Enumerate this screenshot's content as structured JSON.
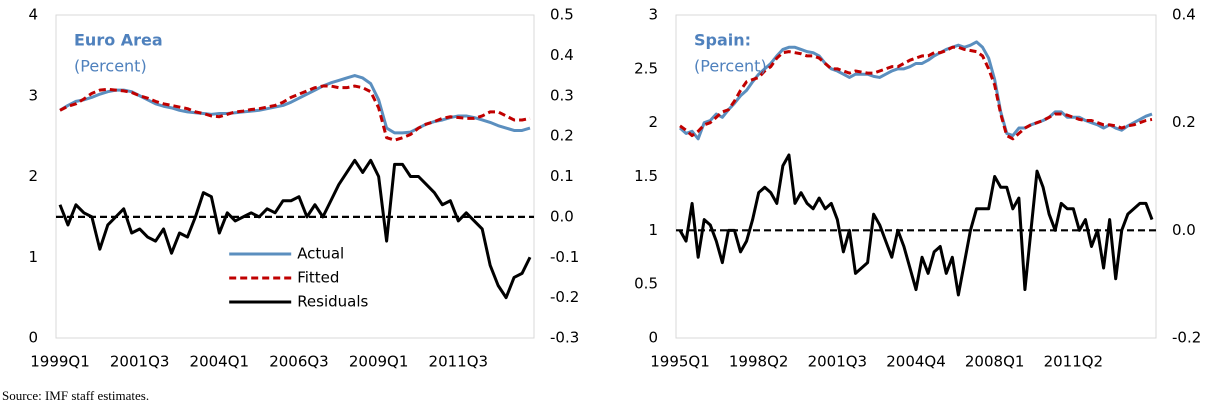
{
  "chart_data": [
    {
      "type": "line",
      "title": "Euro Area",
      "subtitle": "(Percent)",
      "categories": [
        "1999Q1",
        null,
        null,
        null,
        null,
        null,
        null,
        null,
        null,
        null,
        "2001Q3",
        null,
        null,
        null,
        null,
        null,
        null,
        null,
        null,
        null,
        "2004Q1",
        null,
        null,
        null,
        null,
        null,
        null,
        null,
        null,
        null,
        "2006Q3",
        null,
        null,
        null,
        null,
        null,
        null,
        null,
        null,
        null,
        "2009Q1",
        null,
        null,
        null,
        null,
        null,
        null,
        null,
        null,
        null,
        "2011Q3",
        null,
        null,
        null,
        null,
        null,
        null,
        null,
        null,
        null
      ],
      "series": [
        {
          "name": "Actual",
          "color": "#5b8fbf",
          "dash": false,
          "values": [
            2.82,
            2.88,
            2.93,
            2.95,
            2.98,
            3.02,
            3.05,
            3.07,
            3.07,
            3.05,
            3.0,
            2.95,
            2.9,
            2.87,
            2.85,
            2.82,
            2.8,
            2.79,
            2.78,
            2.77,
            2.78,
            2.78,
            2.79,
            2.8,
            2.81,
            2.82,
            2.84,
            2.86,
            2.88,
            2.92,
            2.97,
            3.02,
            3.07,
            3.12,
            3.16,
            3.19,
            3.22,
            3.25,
            3.22,
            3.15,
            2.95,
            2.6,
            2.54,
            2.54,
            2.55,
            2.6,
            2.65,
            2.68,
            2.7,
            2.73,
            2.75,
            2.75,
            2.73,
            2.7,
            2.67,
            2.63,
            2.6,
            2.57,
            2.57,
            2.6
          ]
        },
        {
          "name": "Fitted",
          "color": "#c00000",
          "dash": true,
          "values": [
            2.82,
            2.87,
            2.9,
            2.96,
            3.03,
            3.07,
            3.08,
            3.07,
            3.06,
            3.04,
            3.0,
            2.97,
            2.93,
            2.9,
            2.88,
            2.86,
            2.84,
            2.8,
            2.78,
            2.75,
            2.74,
            2.77,
            2.8,
            2.81,
            2.83,
            2.84,
            2.86,
            2.88,
            2.92,
            2.98,
            3.02,
            3.06,
            3.1,
            3.12,
            3.12,
            3.1,
            3.1,
            3.12,
            3.1,
            3.05,
            2.85,
            2.48,
            2.45,
            2.48,
            2.52,
            2.6,
            2.65,
            2.68,
            2.72,
            2.74,
            2.73,
            2.72,
            2.72,
            2.75,
            2.8,
            2.8,
            2.75,
            2.7,
            2.7,
            2.72
          ]
        },
        {
          "name": "Residuals",
          "color": "#000000",
          "dash": false,
          "axis": "y2",
          "values": [
            0.03,
            -0.02,
            0.03,
            0.01,
            0.0,
            -0.08,
            -0.02,
            0.0,
            0.02,
            -0.04,
            -0.03,
            -0.05,
            -0.06,
            -0.03,
            -0.09,
            -0.04,
            -0.05,
            0.0,
            0.06,
            0.05,
            -0.04,
            0.01,
            -0.01,
            0.0,
            0.01,
            0.0,
            0.02,
            0.01,
            0.04,
            0.04,
            0.05,
            0.0,
            0.03,
            0.0,
            0.04,
            0.08,
            0.11,
            0.14,
            0.11,
            0.14,
            0.1,
            -0.06,
            0.13,
            0.13,
            0.1,
            0.1,
            0.08,
            0.06,
            0.03,
            0.04,
            -0.01,
            0.01,
            -0.01,
            -0.03,
            -0.12,
            -0.17,
            -0.2,
            -0.15,
            -0.14,
            -0.1
          ]
        }
      ],
      "ylim": [
        0,
        4
      ],
      "yticks": [
        0,
        1,
        2,
        3,
        4
      ],
      "y2lim": [
        -0.3,
        0.5
      ],
      "y2ticks": [
        -0.3,
        -0.2,
        -0.1,
        {
          "value": 0,
          "label": "0.0"
        },
        0.1,
        0.2,
        0.3,
        0.4,
        0.5
      ],
      "legend": "lower center"
    },
    {
      "type": "line",
      "title": "Spain:",
      "subtitle": "(Percent)",
      "categories": [
        "1995Q1",
        null,
        null,
        null,
        null,
        null,
        null,
        null,
        null,
        null,
        null,
        null,
        null,
        "1998Q2",
        null,
        null,
        null,
        null,
        null,
        null,
        null,
        null,
        null,
        null,
        null,
        null,
        "2001Q3",
        null,
        null,
        null,
        null,
        null,
        null,
        null,
        null,
        null,
        null,
        null,
        null,
        "2004Q4",
        null,
        null,
        null,
        null,
        null,
        null,
        null,
        null,
        null,
        null,
        null,
        null,
        "2008Q1",
        null,
        null,
        null,
        null,
        null,
        null,
        null,
        null,
        null,
        null,
        null,
        null,
        "2011Q2",
        null,
        null,
        null,
        null,
        null,
        null,
        null,
        null,
        null,
        null,
        null,
        null,
        null
      ],
      "series": [
        {
          "color": "#5b8fbf",
          "dash": false,
          "values": [
            1.95,
            1.9,
            1.92,
            1.85,
            2.0,
            2.02,
            2.08,
            2.05,
            2.12,
            2.18,
            2.25,
            2.3,
            2.38,
            2.45,
            2.5,
            2.55,
            2.62,
            2.68,
            2.7,
            2.7,
            2.68,
            2.66,
            2.65,
            2.62,
            2.55,
            2.5,
            2.48,
            2.45,
            2.42,
            2.45,
            2.45,
            2.45,
            2.43,
            2.42,
            2.45,
            2.48,
            2.5,
            2.5,
            2.52,
            2.55,
            2.55,
            2.58,
            2.62,
            2.65,
            2.68,
            2.7,
            2.72,
            2.7,
            2.72,
            2.75,
            2.7,
            2.6,
            2.4,
            2.1,
            1.9,
            1.88,
            1.95,
            1.95,
            1.98,
            2.0,
            2.02,
            2.05,
            2.1,
            2.1,
            2.05,
            2.05,
            2.05,
            2.02,
            2.0,
            1.98,
            1.95,
            1.98,
            1.95,
            1.93,
            1.97,
            2.0,
            2.03,
            2.06,
            2.08
          ]
        },
        {
          "color": "#c00000",
          "dash": true,
          "values": [
            1.97,
            1.93,
            1.88,
            1.92,
            1.98,
            2.0,
            2.05,
            2.1,
            2.12,
            2.2,
            2.3,
            2.38,
            2.4,
            2.42,
            2.48,
            2.52,
            2.6,
            2.65,
            2.66,
            2.65,
            2.64,
            2.62,
            2.62,
            2.6,
            2.55,
            2.5,
            2.5,
            2.48,
            2.46,
            2.48,
            2.47,
            2.46,
            2.46,
            2.48,
            2.5,
            2.52,
            2.52,
            2.55,
            2.58,
            2.6,
            2.62,
            2.62,
            2.65,
            2.65,
            2.67,
            2.7,
            2.7,
            2.68,
            2.67,
            2.66,
            2.62,
            2.5,
            2.35,
            2.08,
            1.88,
            1.85,
            1.9,
            1.95,
            1.98,
            2.0,
            2.02,
            2.05,
            2.08,
            2.08,
            2.07,
            2.05,
            2.03,
            2.02,
            2.02,
            2.0,
            1.98,
            1.98,
            1.97,
            1.95,
            1.97,
            1.98,
            2.0,
            2.02,
            2.03
          ]
        },
        {
          "color": "#000000",
          "dash": false,
          "axis": "y2",
          "values": [
            0.0,
            -0.02,
            0.05,
            -0.05,
            0.02,
            0.01,
            -0.02,
            -0.06,
            0.0,
            0.0,
            -0.04,
            -0.02,
            0.02,
            0.07,
            0.08,
            0.07,
            0.05,
            0.12,
            0.14,
            0.05,
            0.07,
            0.05,
            0.04,
            0.06,
            0.04,
            0.05,
            0.02,
            -0.04,
            0.0,
            -0.08,
            -0.07,
            -0.06,
            0.03,
            0.01,
            -0.02,
            -0.05,
            0.0,
            -0.03,
            -0.07,
            -0.11,
            -0.05,
            -0.08,
            -0.04,
            -0.03,
            -0.08,
            -0.05,
            -0.12,
            -0.06,
            0.0,
            0.04,
            0.04,
            0.04,
            0.1,
            0.08,
            0.08,
            0.04,
            0.06,
            -0.11,
            0.0,
            0.11,
            0.08,
            0.03,
            0.0,
            0.05,
            0.04,
            0.04,
            0.0,
            0.02,
            -0.03,
            0.0,
            -0.07,
            0.02,
            -0.09,
            0.0,
            0.03,
            0.04,
            0.05,
            0.05,
            0.02
          ]
        }
      ],
      "ylim": [
        0,
        3
      ],
      "yticks": [
        0,
        0.5,
        1,
        1.5,
        2,
        2.5,
        3
      ],
      "y2lim": [
        -0.2,
        0.4
      ],
      "y2ticks": [
        -0.2,
        {
          "value": 0,
          "label": "0.0"
        },
        0.2,
        0.4
      ]
    }
  ],
  "source": "Source: IMF staff estimates."
}
